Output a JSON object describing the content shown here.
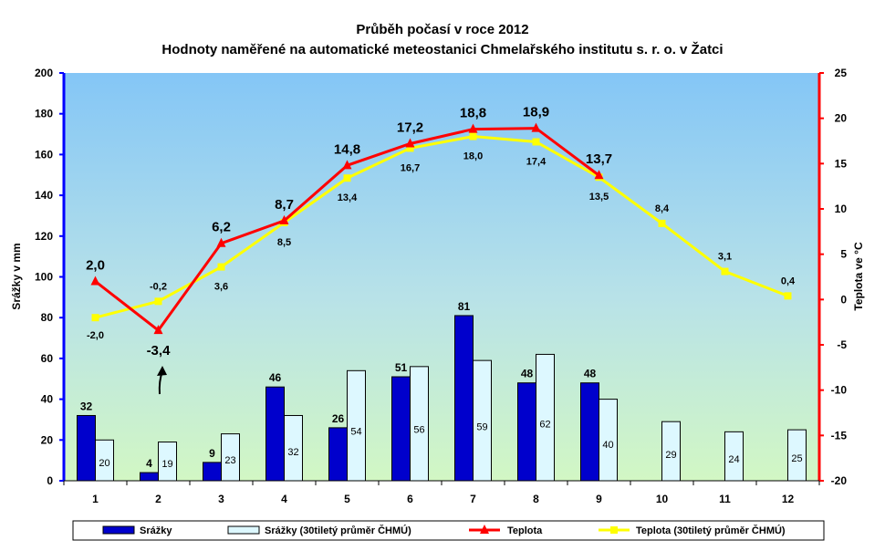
{
  "chart_data": {
    "type": "bar",
    "title": "Průběh počasí v roce 2012",
    "subtitle": "Hodnoty naměřené na automatické meteostanici Chmelařského institutu s. r. o. v Žatci",
    "ylabel": "Srážky v mm",
    "y2label": "Teplota ve °C",
    "xlabel": "",
    "ylim": [
      0,
      200
    ],
    "y2lim": [
      -20,
      25
    ],
    "yticks": [
      "0",
      "20",
      "40",
      "60",
      "80",
      "100",
      "120",
      "140",
      "160",
      "180",
      "200"
    ],
    "y2ticks": [
      "-20",
      "-15",
      "-10",
      "-5",
      "0",
      "5",
      "10",
      "15",
      "20",
      "25"
    ],
    "categories": [
      "1",
      "2",
      "3",
      "4",
      "5",
      "6",
      "7",
      "8",
      "9",
      "10",
      "11",
      "12"
    ],
    "grid": false,
    "legend_position": "bottom",
    "series": [
      {
        "name": "Srážky",
        "kind": "bar",
        "axis": "left",
        "color": "#0000cc",
        "values": [
          32,
          4,
          9,
          46,
          26,
          51,
          81,
          48,
          48,
          null,
          null,
          null
        ],
        "labels": [
          "32",
          "4",
          "9",
          "46",
          "26",
          "51",
          "81",
          "48",
          "48",
          "",
          "",
          ""
        ]
      },
      {
        "name": "Srážky (30tiletý průměr ČHMÚ)",
        "kind": "bar",
        "axis": "left",
        "color": "#ddf8ff",
        "values": [
          20,
          19,
          23,
          32,
          54,
          56,
          59,
          62,
          40,
          29,
          24,
          25
        ],
        "labels": [
          "20",
          "19",
          "23",
          "32",
          "54",
          "56",
          "59",
          "62",
          "40",
          "29",
          "24",
          "25"
        ]
      },
      {
        "name": "Teplota",
        "kind": "line",
        "axis": "right",
        "color": "#ff0000",
        "values": [
          2.0,
          -3.4,
          6.2,
          8.7,
          14.8,
          17.2,
          18.8,
          18.9,
          13.7,
          null,
          null,
          null
        ],
        "labels": [
          "2,0",
          "-3,4",
          "6,2",
          "8,7",
          "14,8",
          "17,2",
          "18,8",
          "18,9",
          "13,7",
          "",
          "",
          ""
        ]
      },
      {
        "name": "Teplota (30tiletý průměr ČHMÚ)",
        "kind": "line",
        "axis": "right",
        "color": "#ffff00",
        "values": [
          -2.0,
          -0.2,
          3.6,
          8.5,
          13.4,
          16.7,
          18.0,
          17.4,
          13.5,
          8.4,
          3.1,
          0.4
        ],
        "labels": [
          "-2,0",
          "-0,2",
          "3,6",
          "8,5",
          "13,4",
          "16,7",
          "18,0",
          "17,4",
          "13,5",
          "8,4",
          "3,1",
          "0,4"
        ]
      }
    ],
    "annotations": [
      {
        "kind": "arrow",
        "category": "2",
        "note": "arrow pointing up at the -3,4 label"
      }
    ],
    "colors": {
      "left_axis": "#0000ff",
      "right_axis": "#ff0000",
      "background_top": "#84c8f6",
      "background_bottom": "#ccf5c6"
    }
  }
}
